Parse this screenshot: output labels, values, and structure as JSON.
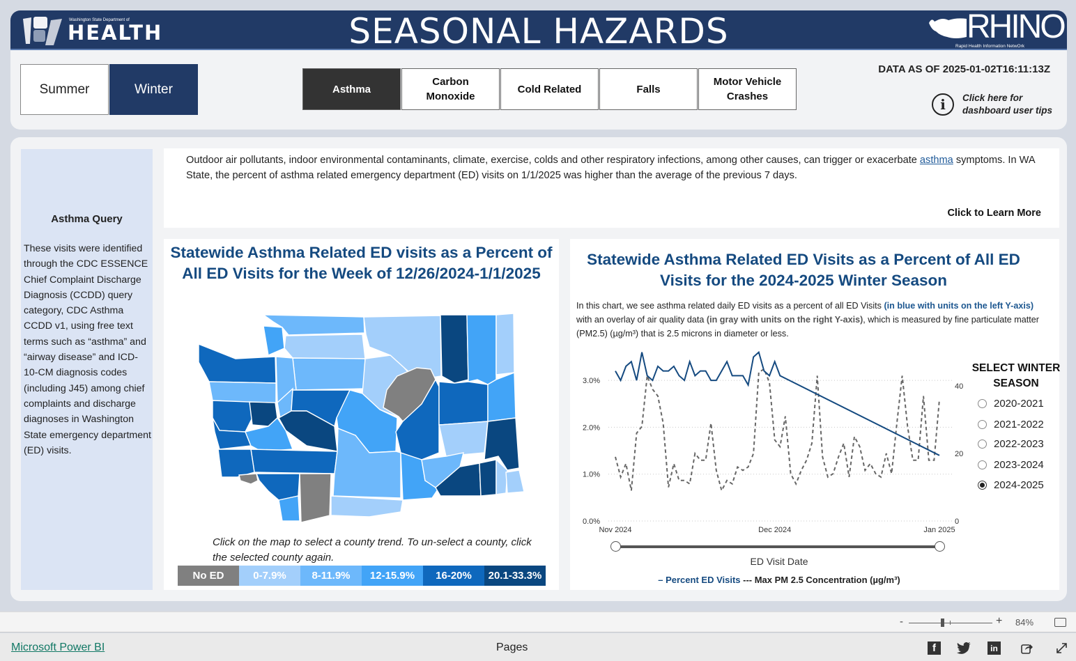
{
  "header": {
    "title": "SEASONAL HAZARDS",
    "logo_small": "Washington State Department of",
    "logo_big": "HEALTH",
    "rhino_text": "RHINO",
    "rhino_sub": "Rapid Health Information NetwOrk",
    "seasons": [
      {
        "label": "Summer",
        "selected": false
      },
      {
        "label": "Winter",
        "selected": true
      }
    ],
    "hazards": [
      {
        "label": "Asthma",
        "selected": true
      },
      {
        "label": "Carbon Monoxide",
        "selected": false
      },
      {
        "label": "Cold Related",
        "selected": false
      },
      {
        "label": "Falls",
        "selected": false
      },
      {
        "label": "Motor Vehicle Crashes",
        "selected": false
      }
    ],
    "data_as_of": "DATA AS OF 2025-01-02T16:11:13Z",
    "tips_icon": "info-circle-icon",
    "tips_line1": "Click here for",
    "tips_line2": "dashboard user tips"
  },
  "sidebar": {
    "title": "Asthma Query",
    "body": "These visits were identified through the CDC ESSENCE Chief Complaint Discharge Diagnosis (CCDD) query category, CDC Asthma CCDD v1, using free text terms such as “asthma” and “airway disease” and ICD-10-CM diagnosis codes (including J45) among chief complaints and discharge diagnoses in Washington State emergency department (ED) visits."
  },
  "info": {
    "text_before": "Outdoor air pollutants, indoor environmental contaminants, climate, exercise, colds and other respiratory infections, among other causes, can trigger or exacerbate ",
    "link": "asthma",
    "text_after": " symptoms. In WA State, the percent of asthma related emergency department (ED) visits on 1/1/2025 was higher than the average of the previous 7 days.",
    "learn_more": "Click to Learn More"
  },
  "map": {
    "title": "Statewide Asthma Related ED visits as a Percent of All ED Visits for the Week of 12/26/2024-1/1/2025",
    "hint": "Click on the map to select a county trend. To un-select a county, click the selected county again.",
    "legend": [
      {
        "label": "No ED",
        "color": "#808080"
      },
      {
        "label": "0-7.9%",
        "color": "#a3cffb"
      },
      {
        "label": "8-11.9%",
        "color": "#6db8fb"
      },
      {
        "label": "12-15.9%",
        "color": "#42a4f7"
      },
      {
        "label": "16-20%",
        "color": "#0f68bd"
      },
      {
        "label": "20.1-33.3%",
        "color": "#0a4780"
      }
    ]
  },
  "chart": {
    "title": "Statewide Asthma Related ED Visits as a Percent of All ED Visits for the 2024-2025 Winter Season",
    "desc_1": "In this chart, we see asthma related daily ED visits as a percent of all ED Visits ",
    "desc_hl1": "(in blue with units on the left Y-axis)",
    "desc_2": " with an overlay of air quality data ",
    "desc_hl2": "(in gray with units on the right Y-axis)",
    "desc_3": ", which is measured by fine particulate matter (PM2.5) (µg/m³) that is 2.5 microns in diameter or less.",
    "xaxis_title": "ED Visit Date",
    "legend_blue": "– Percent ED Visits",
    "legend_gray": " --- Max PM 2.5 Concentration (µg/m³)",
    "season_select_title": "SELECT WINTER SEASON",
    "season_options": [
      {
        "label": "2020-2021",
        "checked": false
      },
      {
        "label": "2021-2022",
        "checked": false
      },
      {
        "label": "2022-2023",
        "checked": false
      },
      {
        "label": "2023-2024",
        "checked": false
      },
      {
        "label": "2024-2025",
        "checked": true
      }
    ]
  },
  "chart_data": {
    "type": "line",
    "title": "Statewide Asthma Related ED Visits as a Percent of All ED Visits for the 2024-2025 Winter Season",
    "xlabel": "ED Visit Date",
    "ylabel": "Percent ED Visits",
    "y2label": "Max PM 2.5 Concentration (µg/m³)",
    "x_ticks": [
      "Nov 2024",
      "Dec 2024",
      "Jan 2025"
    ],
    "y_ticks": [
      "0.0%",
      "1.0%",
      "2.0%",
      "3.0%"
    ],
    "y2_ticks": [
      0,
      20,
      40
    ],
    "ylim": [
      0,
      3.6
    ],
    "y2lim": [
      0,
      52
    ],
    "grid": true,
    "legend_position": "bottom",
    "series": [
      {
        "name": "Percent ED Visits",
        "axis": "left",
        "style": "solid",
        "color": "#154a80",
        "x_day_index": [
          0,
          1,
          2,
          3,
          4,
          5,
          6,
          7,
          8,
          9,
          10,
          11,
          12,
          13,
          14,
          15,
          16,
          17,
          18,
          19,
          20,
          21,
          22,
          23,
          24,
          25,
          26,
          27,
          28,
          29,
          30,
          31,
          61
        ],
        "values": [
          3.2,
          3.0,
          3.3,
          3.4,
          3.0,
          3.6,
          3.1,
          3.0,
          3.3,
          3.2,
          3.2,
          3.3,
          3.1,
          3.0,
          3.4,
          3.1,
          3.2,
          3.2,
          3.0,
          3.0,
          3.2,
          3.4,
          3.1,
          3.1,
          3.1,
          2.9,
          3.5,
          3.6,
          3.2,
          3.1,
          3.4,
          3.1,
          1.4
        ]
      },
      {
        "name": "Max PM 2.5 Concentration (µg/m³)",
        "axis": "right",
        "style": "dashed",
        "color": "#666666",
        "x_day_index": [
          0,
          1,
          2,
          3,
          4,
          5,
          6,
          7,
          8,
          9,
          10,
          11,
          12,
          13,
          14,
          15,
          16,
          17,
          18,
          19,
          20,
          21,
          22,
          23,
          24,
          25,
          26,
          27,
          28,
          29,
          30,
          31,
          32,
          33,
          34,
          35,
          36,
          37,
          38,
          39,
          40,
          41,
          42,
          43,
          44,
          45,
          46,
          47,
          48,
          49,
          50,
          51,
          52,
          53,
          54,
          55,
          56,
          57,
          58,
          59,
          60,
          61
        ],
        "values": [
          19,
          13,
          17,
          9,
          26,
          28,
          43,
          39,
          37,
          29,
          10,
          17,
          12,
          12,
          11,
          20,
          18,
          18,
          29,
          15,
          9,
          12,
          11,
          16,
          15,
          16,
          20,
          44,
          45,
          41,
          24,
          22,
          31,
          14,
          11,
          15,
          18,
          23,
          43,
          19,
          13,
          14,
          19,
          23,
          13,
          25,
          22,
          15,
          17,
          14,
          13,
          20,
          14,
          29,
          43,
          28,
          18,
          18,
          37,
          18,
          18,
          36
        ]
      }
    ]
  },
  "footer": {
    "zoom_minus": "-",
    "zoom_plus": "+",
    "zoom_pct": "84%",
    "powerbi_link": "Microsoft Power BI",
    "pages": "Pages",
    "share_icons": [
      "facebook-icon",
      "twitter-icon",
      "linkedin-icon",
      "share-icon",
      "expand-icon"
    ]
  }
}
